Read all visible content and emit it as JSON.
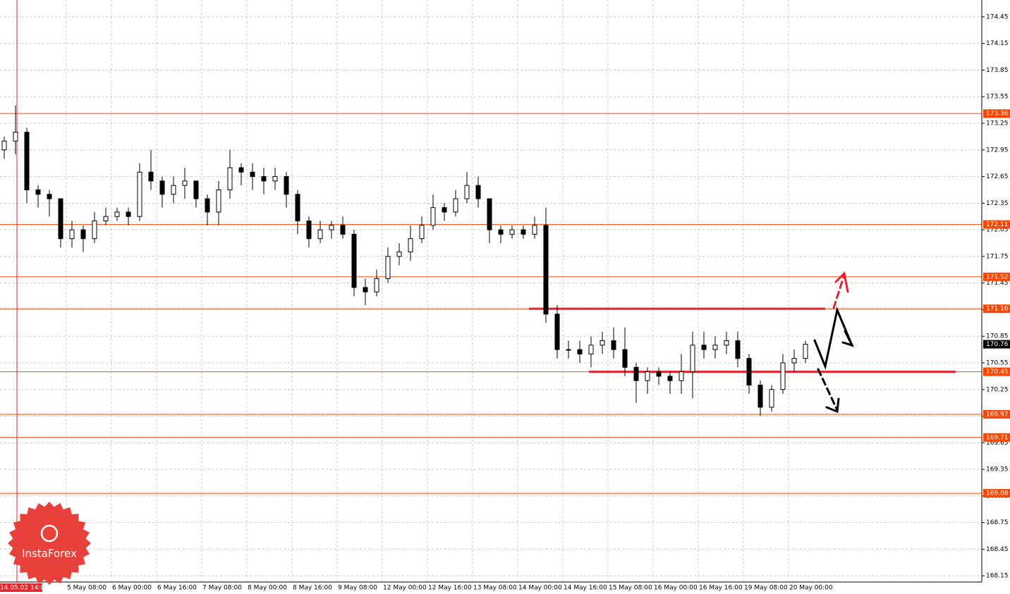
{
  "chart_data": {
    "type": "candlestick",
    "open": [
      172.95,
      173.05,
      173.15,
      172.5,
      172.45,
      172.4,
      171.95,
      172.05,
      171.95,
      172.15,
      172.2,
      172.25,
      172.2,
      172.7,
      172.6,
      172.45,
      172.55,
      172.6,
      172.4,
      172.25,
      172.5,
      172.75,
      172.7,
      172.65,
      172.6,
      172.65,
      172.45,
      172.15,
      171.95,
      172.05,
      172.1,
      172.0,
      171.4,
      171.35,
      171.5,
      171.75,
      171.8,
      171.95,
      172.1,
      172.3,
      172.25,
      172.4,
      172.55,
      172.4,
      172.05,
      172.0,
      172.05,
      172.0,
      172.1,
      171.1,
      170.7,
      170.7,
      170.65,
      170.75,
      170.8,
      170.7,
      170.5,
      170.35,
      170.45,
      170.4,
      170.35,
      170.45,
      170.75,
      170.7,
      170.75,
      170.8,
      170.6,
      170.3,
      170.05,
      170.25,
      170.55,
      170.6
    ],
    "high": [
      173.1,
      173.45,
      173.2,
      172.55,
      172.5,
      172.4,
      172.15,
      172.1,
      172.25,
      172.3,
      172.3,
      172.3,
      172.8,
      172.95,
      172.65,
      172.65,
      172.75,
      172.6,
      172.45,
      172.6,
      172.95,
      172.8,
      172.8,
      172.75,
      172.75,
      172.7,
      172.5,
      172.2,
      172.15,
      172.15,
      172.2,
      172.05,
      171.5,
      171.6,
      171.85,
      171.9,
      172.1,
      172.2,
      172.45,
      172.35,
      172.5,
      172.7,
      172.65,
      172.4,
      172.1,
      172.1,
      172.1,
      172.2,
      172.3,
      171.2,
      170.8,
      170.8,
      170.85,
      170.9,
      170.95,
      170.95,
      170.55,
      170.5,
      170.5,
      170.45,
      170.65,
      170.9,
      170.9,
      170.85,
      170.9,
      170.9,
      170.65,
      170.35,
      170.3,
      170.65,
      170.7,
      170.8
    ],
    "low": [
      172.85,
      172.9,
      172.35,
      172.3,
      172.2,
      171.85,
      171.85,
      171.8,
      171.9,
      172.1,
      172.15,
      172.1,
      172.15,
      172.5,
      172.3,
      172.35,
      172.4,
      172.3,
      172.1,
      172.1,
      172.4,
      172.55,
      172.5,
      172.45,
      172.5,
      172.3,
      172.0,
      171.85,
      171.9,
      171.95,
      171.95,
      171.3,
      171.2,
      171.3,
      171.45,
      171.65,
      171.7,
      171.9,
      172.05,
      172.15,
      172.2,
      172.35,
      172.3,
      171.9,
      171.9,
      171.95,
      171.95,
      171.95,
      171.0,
      170.6,
      170.6,
      170.55,
      170.5,
      170.65,
      170.6,
      170.4,
      170.1,
      170.2,
      170.3,
      170.2,
      170.2,
      170.15,
      170.6,
      170.6,
      170.65,
      170.5,
      170.2,
      169.95,
      170.0,
      170.2,
      170.45,
      170.55
    ],
    "close": [
      173.05,
      173.15,
      172.5,
      172.45,
      172.4,
      171.95,
      172.05,
      171.95,
      172.15,
      172.2,
      172.25,
      172.2,
      172.7,
      172.6,
      172.45,
      172.55,
      172.6,
      172.4,
      172.25,
      172.5,
      172.75,
      172.7,
      172.65,
      172.6,
      172.65,
      172.45,
      172.15,
      171.95,
      172.05,
      172.1,
      172.0,
      171.4,
      171.35,
      171.5,
      171.75,
      171.8,
      171.95,
      172.1,
      172.3,
      172.25,
      172.4,
      172.55,
      172.4,
      172.05,
      172.0,
      172.05,
      172.0,
      172.1,
      171.1,
      170.7,
      170.7,
      170.65,
      170.75,
      170.8,
      170.7,
      170.5,
      170.35,
      170.45,
      170.4,
      170.35,
      170.45,
      170.75,
      170.7,
      170.75,
      170.8,
      170.6,
      170.3,
      170.05,
      170.25,
      170.55,
      170.6,
      170.76
    ],
    "ylim": [
      168.08,
      174.64
    ],
    "yticks": [
      174.45,
      174.15,
      173.85,
      173.55,
      173.25,
      172.95,
      172.65,
      172.35,
      172.05,
      171.75,
      171.45,
      171.15,
      170.85,
      170.55,
      170.25,
      169.95,
      169.65,
      169.35,
      169.05,
      168.75,
      168.45,
      168.15
    ],
    "levels": [
      173.36,
      172.11,
      171.52,
      171.16,
      170.45,
      169.97,
      169.71,
      169.08
    ],
    "level_color": "#ff4500",
    "zone_lines": [
      171.16,
      170.45
    ],
    "zone_color": "#e8232a",
    "last_price": 170.76,
    "candle_color": "#000000",
    "grid": true,
    "x_labels": [
      "14.05.02 14:00",
      "5 May 08:00",
      "6 May 00:00",
      "6 May 16:00",
      "7 May 08:00",
      "8 May 00:00",
      "8 May 16:00",
      "9 May 08:00",
      "12 May 00:00",
      "12 May 16:00",
      "13 May 08:00",
      "14 May 00:00",
      "14 May 16:00",
      "15 May 08:00",
      "16 May 00:00",
      "16 May 16:00",
      "19 May 08:00",
      "20 May 00:00"
    ],
    "logo": "InstaForex"
  }
}
